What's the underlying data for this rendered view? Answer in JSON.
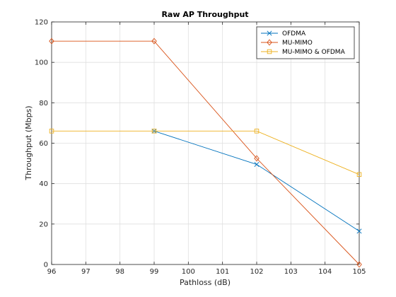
{
  "chart_data": {
    "type": "line",
    "title": "Raw AP Throughput",
    "xlabel": "Pathloss (dB)",
    "ylabel": "Throughput (Mbps)",
    "xlim": [
      96,
      105
    ],
    "ylim": [
      0,
      120
    ],
    "xticks": [
      "96",
      "97",
      "98",
      "99",
      "100",
      "101",
      "102",
      "103",
      "104",
      "105"
    ],
    "yticks": [
      "0",
      "20",
      "40",
      "60",
      "80",
      "100",
      "120"
    ],
    "grid": true,
    "legend_position": "top-right",
    "series": [
      {
        "name": "OFDMA",
        "color": "#0072BD",
        "marker": "x",
        "x": [
          99,
          102,
          105
        ],
        "y": [
          66,
          49.5,
          16.5
        ]
      },
      {
        "name": "MU-MIMO",
        "color": "#D95319",
        "marker": "diamond",
        "x": [
          96,
          99,
          102,
          105
        ],
        "y": [
          110.5,
          110.5,
          52.5,
          0
        ]
      },
      {
        "name": "MU-MIMO & OFDMA",
        "color": "#EDB120",
        "marker": "square",
        "x": [
          96,
          99,
          102,
          105
        ],
        "y": [
          66,
          66,
          66,
          44.5
        ]
      }
    ]
  }
}
